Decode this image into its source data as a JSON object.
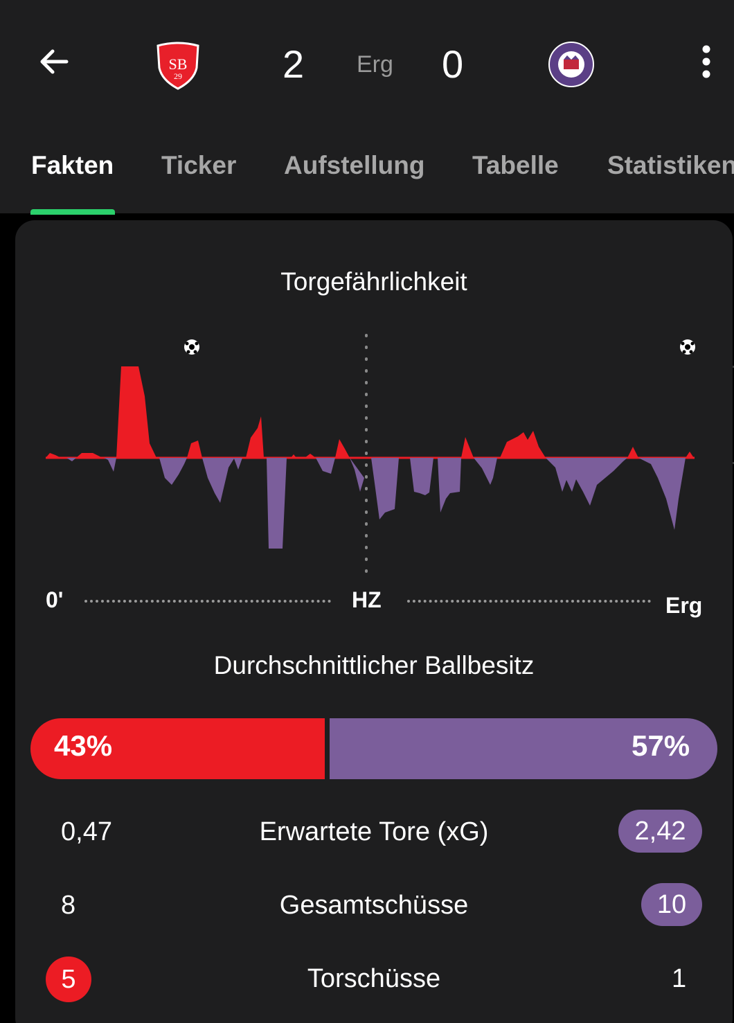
{
  "header": {
    "home_score": "2",
    "status": "Erg",
    "away_score": "0",
    "home_team_color": "#ec1c24",
    "away_team_color": "#7b5e9b"
  },
  "tabs": [
    {
      "label": "Fakten",
      "active": true
    },
    {
      "label": "Ticker",
      "active": false
    },
    {
      "label": "Aufstellung",
      "active": false
    },
    {
      "label": "Tabelle",
      "active": false
    },
    {
      "label": "Statistiken",
      "active": false
    }
  ],
  "momentum": {
    "title": "Torgefährlichkeit",
    "start_label": "0'",
    "half_label": "HZ",
    "end_label": "Erg"
  },
  "possession": {
    "title": "Durchschnittlicher Ballbesitz",
    "home": "43%",
    "away": "57%"
  },
  "stats": [
    {
      "label": "Erwartete Tore (xG)",
      "home": "0,47",
      "away": "2,42"
    },
    {
      "label": "Gesamtschüsse",
      "home": "8",
      "away": "10"
    },
    {
      "label": "Torschüsse",
      "home": "5",
      "away": "1"
    }
  ]
}
